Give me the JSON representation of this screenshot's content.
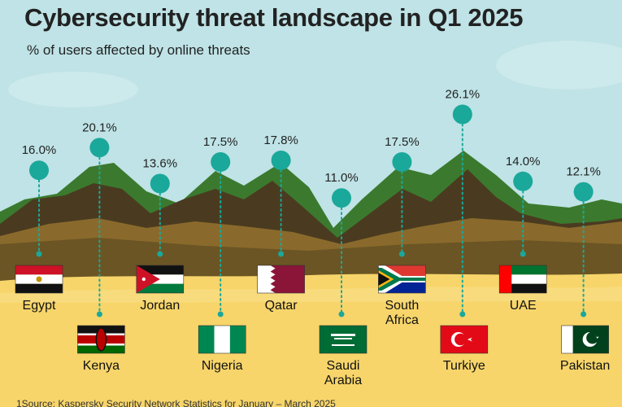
{
  "header": {
    "title": "Cybersecurity threat landscape in Q1 2025",
    "subtitle": "% of users affected by online threats"
  },
  "footer": {
    "source": "1Source: Kaspersky Security Network Statistics for January – March 2025"
  },
  "colors": {
    "sky": "#bfe3e6",
    "sand": "#f7d56a",
    "dune_dark": "#6b5524",
    "mountain_green": "#3b7a2e",
    "mountain_dark": "#4a3b20",
    "marker": "#1aa89a"
  },
  "chart_data": {
    "type": "bar",
    "title": "Cybersecurity threat landscape in Q1 2025",
    "subtitle": "% of users affected by online threats",
    "unit": "%",
    "categories": [
      "Egypt",
      "Kenya",
      "Jordan",
      "Nigeria",
      "Qatar",
      "Saudi Arabia",
      "South Africa",
      "Turkiye",
      "UAE",
      "Pakistan"
    ],
    "category_lines": [
      [
        "Egypt"
      ],
      [
        "Kenya"
      ],
      [
        "Jordan"
      ],
      [
        "Nigeria"
      ],
      [
        "Qatar"
      ],
      [
        "Saudi",
        "Arabia"
      ],
      [
        "South",
        "Africa"
      ],
      [
        "Turkiye"
      ],
      [
        "UAE"
      ],
      [
        "Pakistan"
      ]
    ],
    "values": [
      16.0,
      20.1,
      13.6,
      17.5,
      17.8,
      11.0,
      17.5,
      26.1,
      14.0,
      12.1
    ],
    "value_labels": [
      "16.0%",
      "20.1%",
      "13.6%",
      "17.5%",
      "17.8%",
      "11.0%",
      "17.5%",
      "26.1%",
      "14.0%",
      "12.1%"
    ],
    "flags": [
      "egypt-flag",
      "kenya-flag",
      "jordan-flag",
      "nigeria-flag",
      "qatar-flag",
      "saudi-arabia-flag",
      "south-africa-flag",
      "turkiye-flag",
      "uae-flag",
      "pakistan-flag"
    ],
    "flag_row": [
      "top",
      "bottom",
      "top",
      "bottom",
      "top",
      "bottom",
      "top",
      "bottom",
      "top",
      "bottom"
    ]
  }
}
